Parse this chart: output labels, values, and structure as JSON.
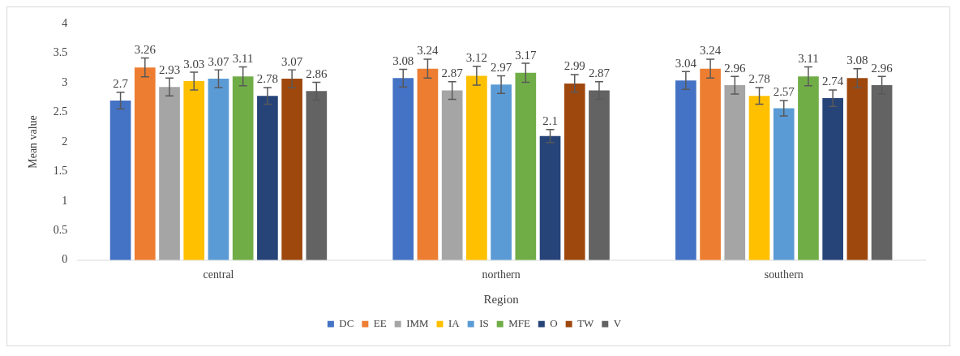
{
  "chart_data": {
    "type": "bar",
    "xlabel": "Region",
    "ylabel": "Mean value",
    "categories": [
      "central",
      "northern",
      "southern"
    ],
    "series": [
      {
        "name": "DC",
        "color": "#4472c4",
        "values": [
          2.7,
          3.08,
          3.04
        ],
        "errors": [
          0.14,
          0.15,
          0.15
        ]
      },
      {
        "name": "EE",
        "color": "#ed7d31",
        "values": [
          3.26,
          3.24,
          3.24
        ],
        "errors": [
          0.16,
          0.16,
          0.16
        ]
      },
      {
        "name": "IMM",
        "color": "#a5a5a5",
        "values": [
          2.93,
          2.87,
          2.96
        ],
        "errors": [
          0.15,
          0.15,
          0.15
        ]
      },
      {
        "name": "IA",
        "color": "#ffc000",
        "values": [
          3.03,
          3.12,
          2.78
        ],
        "errors": [
          0.15,
          0.16,
          0.14
        ]
      },
      {
        "name": "IS",
        "color": "#5b9bd5",
        "values": [
          3.07,
          2.97,
          2.57
        ],
        "errors": [
          0.15,
          0.15,
          0.13
        ]
      },
      {
        "name": "MFE",
        "color": "#70ad47",
        "values": [
          3.11,
          3.17,
          3.11
        ],
        "errors": [
          0.16,
          0.16,
          0.16
        ]
      },
      {
        "name": "O",
        "color": "#264478",
        "values": [
          2.78,
          2.1,
          2.74
        ],
        "errors": [
          0.14,
          0.11,
          0.14
        ]
      },
      {
        "name": "TW",
        "color": "#9e480e",
        "values": [
          3.07,
          2.99,
          3.08
        ],
        "errors": [
          0.15,
          0.15,
          0.16
        ]
      },
      {
        "name": "V",
        "color": "#636363",
        "values": [
          2.86,
          2.87,
          2.96
        ],
        "errors": [
          0.15,
          0.15,
          0.15
        ]
      }
    ],
    "ylim": [
      0,
      4
    ],
    "yticks": [
      0,
      0.5,
      1,
      1.5,
      2,
      2.5,
      3,
      3.5,
      4
    ],
    "grid": false,
    "legend": "bottom",
    "data_labels": true
  }
}
